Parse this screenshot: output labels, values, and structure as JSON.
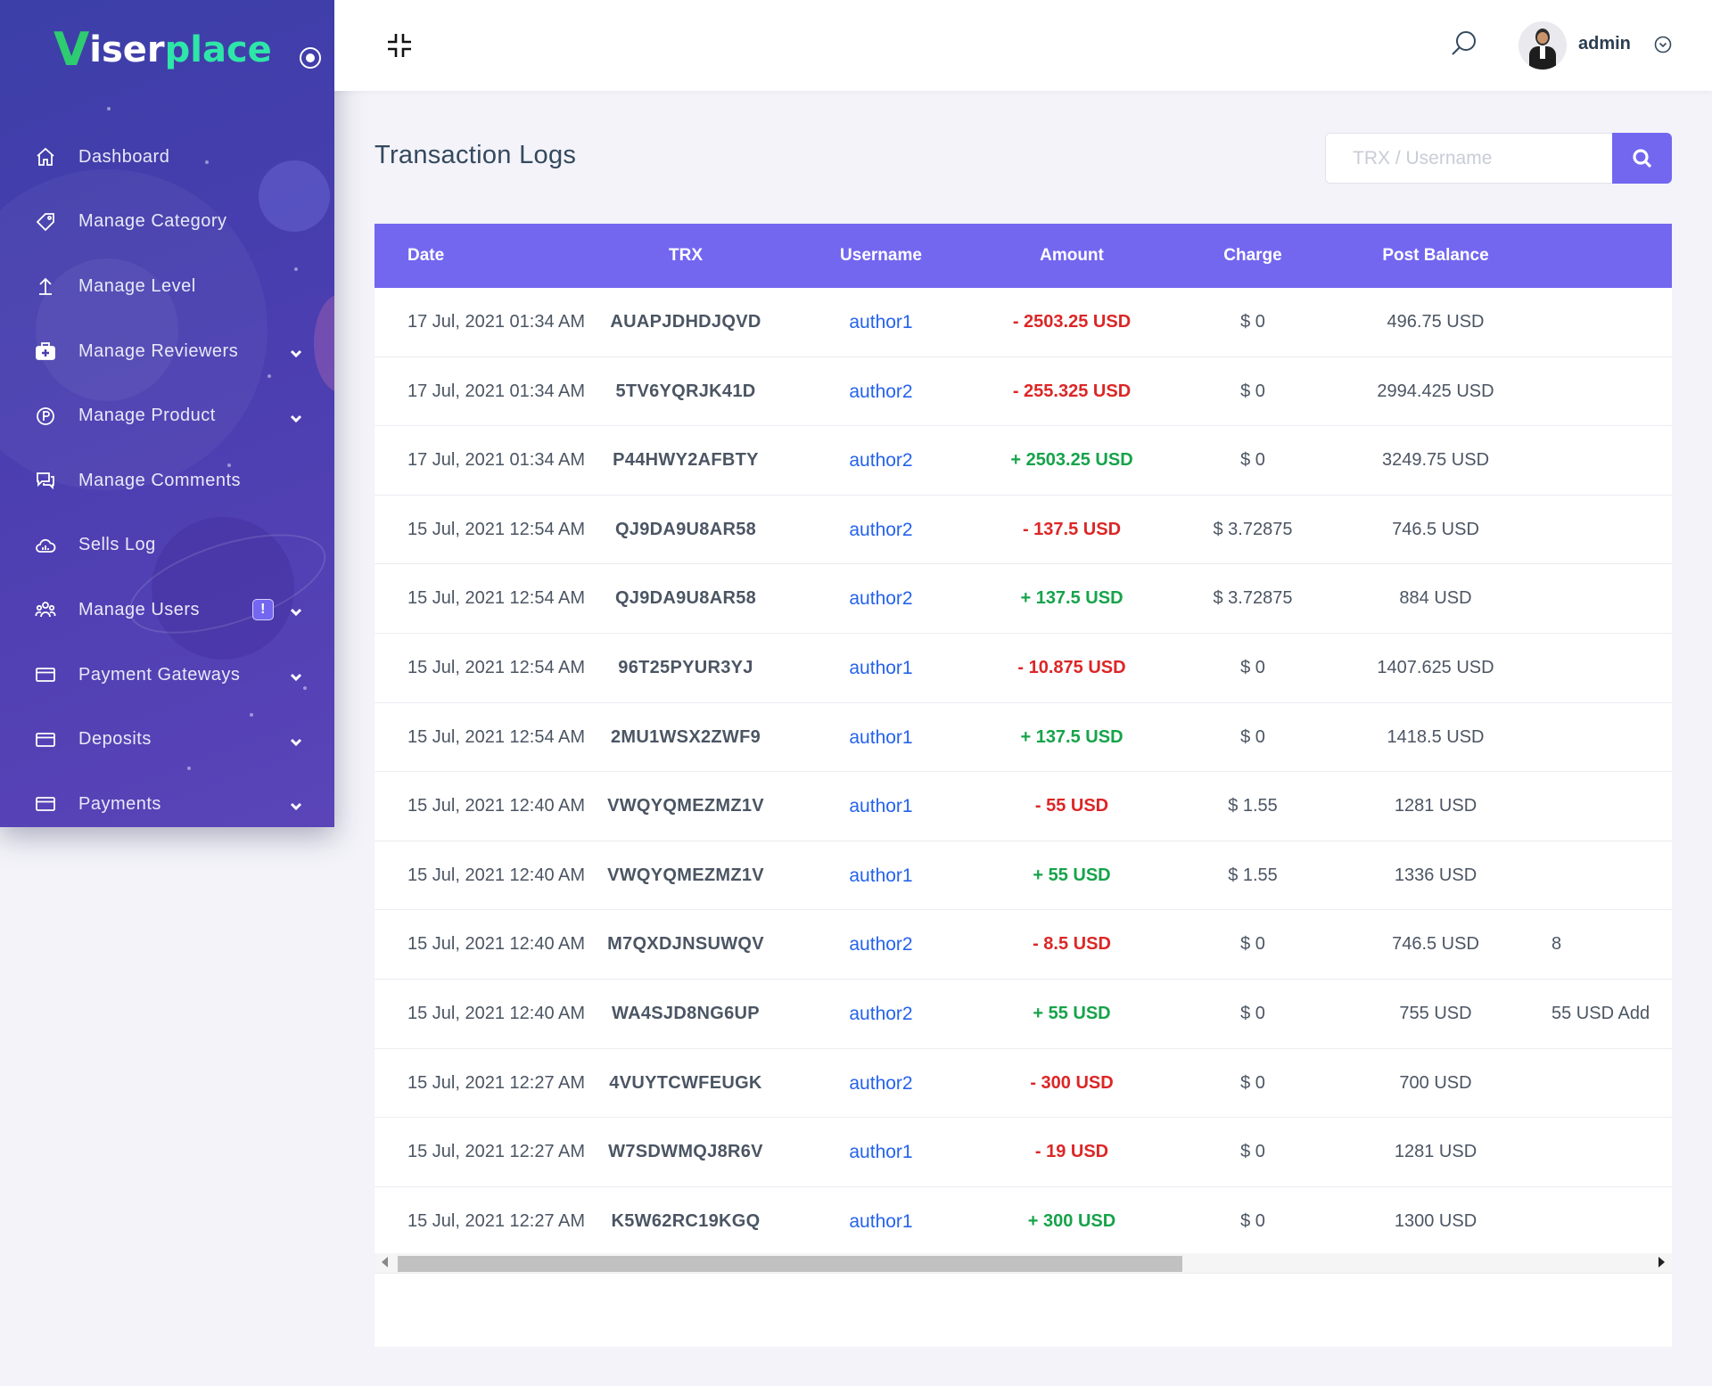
{
  "brand": {
    "logo_v": "V",
    "logo_part1": "iser",
    "logo_part2": "place"
  },
  "sidebar": {
    "items": [
      {
        "label": "Dashboard",
        "icon": "home-icon",
        "has_submenu": false
      },
      {
        "label": "Manage Category",
        "icon": "tag-icon",
        "has_submenu": false
      },
      {
        "label": "Manage Level",
        "icon": "arrow-up-icon",
        "has_submenu": false
      },
      {
        "label": "Manage Reviewers",
        "icon": "medkit-icon",
        "has_submenu": true
      },
      {
        "label": "Manage Product",
        "icon": "product-p-icon",
        "has_submenu": true
      },
      {
        "label": "Manage Comments",
        "icon": "comments-icon",
        "has_submenu": false
      },
      {
        "label": "Sells Log",
        "icon": "cloud-icon",
        "has_submenu": false
      },
      {
        "label": "Manage Users",
        "icon": "users-icon",
        "has_submenu": true,
        "badge": "!"
      },
      {
        "label": "Payment Gateways",
        "icon": "card-icon",
        "has_submenu": true
      },
      {
        "label": "Deposits",
        "icon": "card-icon",
        "has_submenu": true
      },
      {
        "label": "Payments",
        "icon": "card-icon",
        "has_submenu": true
      }
    ]
  },
  "header": {
    "user_name": "admin"
  },
  "page": {
    "title": "Transaction Logs"
  },
  "search": {
    "placeholder": "TRX / Username"
  },
  "table": {
    "columns": [
      "Date",
      "TRX",
      "Username",
      "Amount",
      "Charge",
      "Post Balance"
    ],
    "rows": [
      {
        "date": "17 Jul, 2021 01:34 AM",
        "trx": "AUAPJDHDJQVD",
        "username": "author1",
        "amount": "- 2503.25 USD",
        "sign": "minus",
        "charge": "$ 0",
        "post_balance": "496.75 USD",
        "detail": ""
      },
      {
        "date": "17 Jul, 2021 01:34 AM",
        "trx": "5TV6YQRJK41D",
        "username": "author2",
        "amount": "- 255.325 USD",
        "sign": "minus",
        "charge": "$ 0",
        "post_balance": "2994.425 USD",
        "detail": ""
      },
      {
        "date": "17 Jul, 2021 01:34 AM",
        "trx": "P44HWY2AFBTY",
        "username": "author2",
        "amount": "+ 2503.25 USD",
        "sign": "plus",
        "charge": "$ 0",
        "post_balance": "3249.75 USD",
        "detail": ""
      },
      {
        "date": "15 Jul, 2021 12:54 AM",
        "trx": "QJ9DA9U8AR58",
        "username": "author2",
        "amount": "- 137.5 USD",
        "sign": "minus",
        "charge": "$ 3.72875",
        "post_balance": "746.5 USD",
        "detail": ""
      },
      {
        "date": "15 Jul, 2021 12:54 AM",
        "trx": "QJ9DA9U8AR58",
        "username": "author2",
        "amount": "+ 137.5 USD",
        "sign": "plus",
        "charge": "$ 3.72875",
        "post_balance": "884 USD",
        "detail": ""
      },
      {
        "date": "15 Jul, 2021 12:54 AM",
        "trx": "96T25PYUR3YJ",
        "username": "author1",
        "amount": "- 10.875 USD",
        "sign": "minus",
        "charge": "$ 0",
        "post_balance": "1407.625 USD",
        "detail": ""
      },
      {
        "date": "15 Jul, 2021 12:54 AM",
        "trx": "2MU1WSX2ZWF9",
        "username": "author1",
        "amount": "+ 137.5 USD",
        "sign": "plus",
        "charge": "$ 0",
        "post_balance": "1418.5 USD",
        "detail": ""
      },
      {
        "date": "15 Jul, 2021 12:40 AM",
        "trx": "VWQYQMEZMZ1V",
        "username": "author1",
        "amount": "- 55 USD",
        "sign": "minus",
        "charge": "$ 1.55",
        "post_balance": "1281 USD",
        "detail": ""
      },
      {
        "date": "15 Jul, 2021 12:40 AM",
        "trx": "VWQYQMEZMZ1V",
        "username": "author1",
        "amount": "+ 55 USD",
        "sign": "plus",
        "charge": "$ 1.55",
        "post_balance": "1336 USD",
        "detail": ""
      },
      {
        "date": "15 Jul, 2021 12:40 AM",
        "trx": "M7QXDJNSUWQV",
        "username": "author2",
        "amount": "- 8.5 USD",
        "sign": "minus",
        "charge": "$ 0",
        "post_balance": "746.5 USD",
        "detail": "8"
      },
      {
        "date": "15 Jul, 2021 12:40 AM",
        "trx": "WA4SJD8NG6UP",
        "username": "author2",
        "amount": "+ 55 USD",
        "sign": "plus",
        "charge": "$ 0",
        "post_balance": "755 USD",
        "detail": "55 USD Add"
      },
      {
        "date": "15 Jul, 2021 12:27 AM",
        "trx": "4VUYTCWFEUGK",
        "username": "author2",
        "amount": "- 300 USD",
        "sign": "minus",
        "charge": "$ 0",
        "post_balance": "700 USD",
        "detail": ""
      },
      {
        "date": "15 Jul, 2021 12:27 AM",
        "trx": "W7SDWMQJ8R6V",
        "username": "author1",
        "amount": "- 19 USD",
        "sign": "minus",
        "charge": "$ 0",
        "post_balance": "1281 USD",
        "detail": ""
      },
      {
        "date": "15 Jul, 2021 12:27 AM",
        "trx": "K5W62RC19KGQ",
        "username": "author1",
        "amount": "+ 300 USD",
        "sign": "plus",
        "charge": "$ 0",
        "post_balance": "1300 USD",
        "detail": ""
      }
    ]
  },
  "colors": {
    "accent": "#7367f0",
    "sidebar": "#4a3eb0",
    "positive": "#16a34a",
    "negative": "#dc2626",
    "link": "#2563eb",
    "logo_green": "#2ecc71"
  }
}
